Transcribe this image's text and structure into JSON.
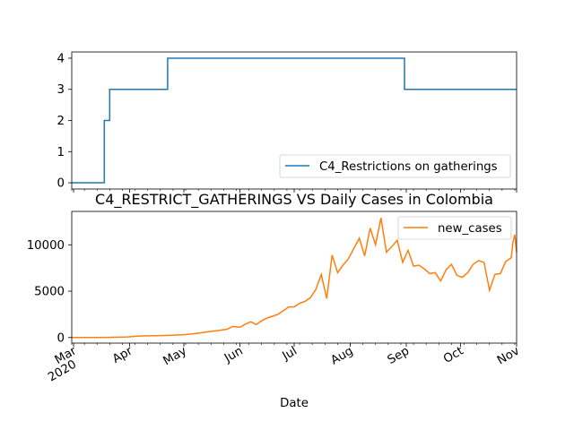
{
  "chart_data": [
    {
      "type": "line",
      "title": "",
      "xlabel": "",
      "ylabel": "",
      "x_range": [
        "2020-02-29",
        "2020-11-01"
      ],
      "ylim": [
        -0.2,
        4.2
      ],
      "yticks": [
        0,
        1,
        2,
        3,
        4
      ],
      "grid": false,
      "legend_position": "lower-right",
      "series": [
        {
          "name": "C4_Restrictions on gatherings",
          "color": "#1f77b4",
          "step": true,
          "x": [
            "2020-02-29",
            "2020-03-18",
            "2020-03-21",
            "2020-04-22",
            "2020-08-31",
            "2020-11-01"
          ],
          "values": [
            0,
            2,
            3,
            4,
            3,
            3
          ]
        }
      ]
    },
    {
      "type": "line",
      "title": "C4_RESTRICT_GATHERINGS VS Daily Cases in Colombia",
      "xlabel": "Date",
      "ylabel": "",
      "x_range": [
        "2020-02-29",
        "2020-11-01"
      ],
      "ylim": [
        -600,
        13600
      ],
      "yticks": [
        0,
        5000,
        10000
      ],
      "grid": false,
      "legend_position": "upper-right",
      "x_tick_labels": [
        {
          "date": "2020-03-01",
          "label": "Mar",
          "sublabel": "2020"
        },
        {
          "date": "2020-04-01",
          "label": "Apr"
        },
        {
          "date": "2020-05-01",
          "label": "May"
        },
        {
          "date": "2020-06-01",
          "label": "Jun"
        },
        {
          "date": "2020-07-01",
          "label": "Jul"
        },
        {
          "date": "2020-08-01",
          "label": "Aug"
        },
        {
          "date": "2020-09-01",
          "label": "Sep"
        },
        {
          "date": "2020-10-01",
          "label": "Oct"
        },
        {
          "date": "2020-11-01",
          "label": "Nov"
        }
      ],
      "series": [
        {
          "name": "new_cases",
          "color": "#ff7f0e",
          "x": [
            "2020-02-29",
            "2020-03-10",
            "2020-03-20",
            "2020-03-31",
            "2020-04-05",
            "2020-04-10",
            "2020-04-15",
            "2020-04-20",
            "2020-04-25",
            "2020-04-30",
            "2020-05-05",
            "2020-05-10",
            "2020-05-15",
            "2020-05-20",
            "2020-05-25",
            "2020-05-28",
            "2020-06-01",
            "2020-06-04",
            "2020-06-07",
            "2020-06-10",
            "2020-06-13",
            "2020-06-16",
            "2020-06-19",
            "2020-06-22",
            "2020-06-25",
            "2020-06-28",
            "2020-07-01",
            "2020-07-04",
            "2020-07-07",
            "2020-07-10",
            "2020-07-13",
            "2020-07-16",
            "2020-07-19",
            "2020-07-22",
            "2020-07-25",
            "2020-07-28",
            "2020-07-31",
            "2020-08-03",
            "2020-08-06",
            "2020-08-09",
            "2020-08-12",
            "2020-08-15",
            "2020-08-18",
            "2020-08-21",
            "2020-08-24",
            "2020-08-27",
            "2020-08-30",
            "2020-09-02",
            "2020-09-05",
            "2020-09-08",
            "2020-09-11",
            "2020-09-14",
            "2020-09-17",
            "2020-09-20",
            "2020-09-23",
            "2020-09-26",
            "2020-09-29",
            "2020-10-02",
            "2020-10-05",
            "2020-10-08",
            "2020-10-11",
            "2020-10-14",
            "2020-10-17",
            "2020-10-20",
            "2020-10-23",
            "2020-10-26",
            "2020-10-29",
            "2020-10-30",
            "2020-10-31",
            "2020-11-01"
          ],
          "values": [
            0,
            0,
            20,
            70,
            150,
            180,
            200,
            220,
            260,
            300,
            380,
            500,
            650,
            750,
            900,
            1200,
            1100,
            1450,
            1700,
            1400,
            1800,
            2100,
            2300,
            2500,
            2900,
            3300,
            3300,
            3700,
            3900,
            4300,
            5200,
            6800,
            4200,
            8900,
            7000,
            7800,
            8500,
            9600,
            10700,
            8800,
            11800,
            10000,
            12900,
            9200,
            9800,
            10500,
            8100,
            9400,
            7700,
            7800,
            7400,
            6900,
            7000,
            6100,
            7300,
            7900,
            6700,
            6500,
            7000,
            7900,
            8300,
            8100,
            5100,
            6800,
            6900,
            8200,
            8600,
            10300,
            11100,
            9200
          ]
        }
      ]
    }
  ]
}
